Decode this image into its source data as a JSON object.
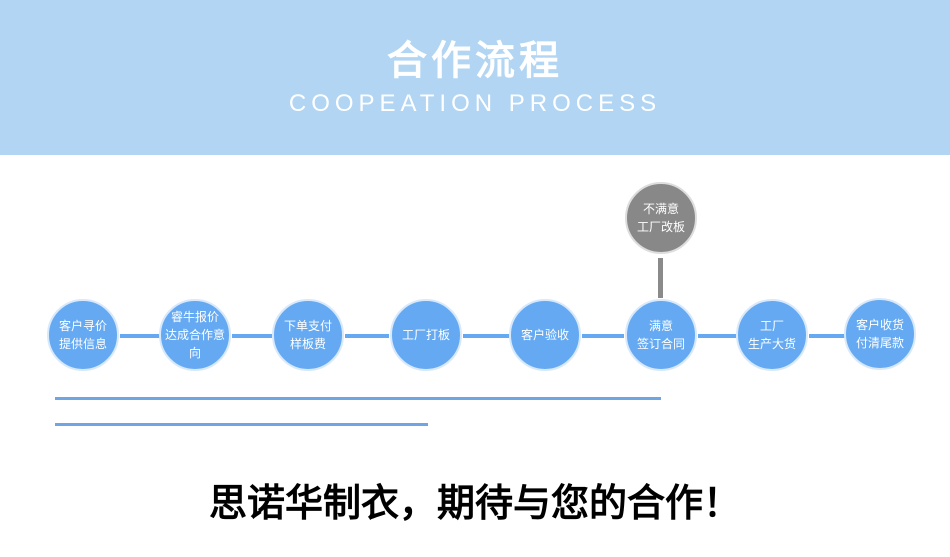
{
  "header": {
    "title": "合作流程",
    "subtitle": "COOPEATION PROCESS"
  },
  "steps": [
    {
      "l1": "客户寻价",
      "l2": "提供信息"
    },
    {
      "l1": "睿牛报价",
      "l2": "达成合作意向"
    },
    {
      "l1": "下单支付",
      "l2": "样板费"
    },
    {
      "l1": "工厂打板",
      "l2": ""
    },
    {
      "l1": "客户验收",
      "l2": ""
    },
    {
      "l1": "满意",
      "l2": "签订合同"
    },
    {
      "l1": "工厂",
      "l2": "生产大货"
    },
    {
      "l1": "客户收货",
      "l2": "付清尾款"
    }
  ],
  "branch": {
    "l1": "不满意",
    "l2": "工厂改板"
  },
  "slogan": "思诺华制衣，期待与您的合作！",
  "colors": {
    "header": "#b1d5f2",
    "step": "#64a9f2",
    "branch": "#888888"
  }
}
